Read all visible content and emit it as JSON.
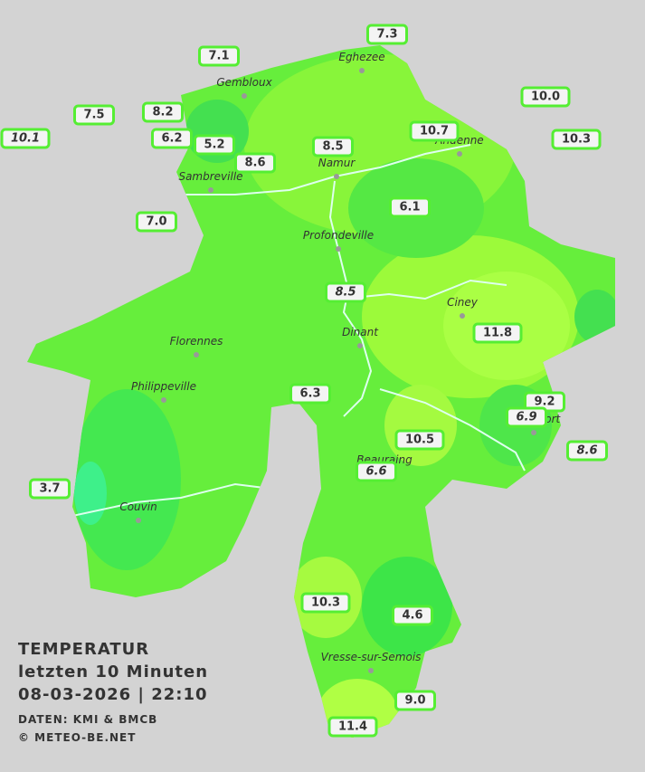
{
  "towns": [
    "Eghezee",
    "Gembloux",
    "Andenne",
    "Namur",
    "Sambreville",
    "Profondeville",
    "Ciney",
    "Dinant",
    "Florennes",
    "Philippeville",
    "Rochefort",
    "Beauraing",
    "Couvin",
    "Vresse-sur-Semois"
  ],
  "stations": [
    {
      "label": "7.3"
    },
    {
      "label": "7.1"
    },
    {
      "label": "10.0"
    },
    {
      "label": "7.5"
    },
    {
      "label": "8.2"
    },
    {
      "label": "10.7"
    },
    {
      "label": "10.1",
      "italic": true
    },
    {
      "label": "6.2"
    },
    {
      "label": "5.2"
    },
    {
      "label": "8.5"
    },
    {
      "label": "10.3"
    },
    {
      "label": "8.6"
    },
    {
      "label": "6.1"
    },
    {
      "label": "7.0"
    },
    {
      "label": "8.5",
      "italic": true
    },
    {
      "label": "11.8"
    },
    {
      "label": "6.3"
    },
    {
      "label": "9.2"
    },
    {
      "label": "6.9",
      "italic": true
    },
    {
      "label": "10.5"
    },
    {
      "label": "8.6",
      "italic": true
    },
    {
      "label": "6.6",
      "italic": true
    },
    {
      "label": "3.7"
    },
    {
      "label": "10.3"
    },
    {
      "label": "4.6"
    },
    {
      "label": "9.0"
    },
    {
      "label": "11.4"
    }
  ],
  "legend": {
    "title": "TEMPERATUR",
    "period": "letzten 10 Minuten",
    "datetime": "08-03-2026  |  22:10",
    "source": "DATEN: KMI & BMCB",
    "credit": "© METEO-BE.NET"
  }
}
